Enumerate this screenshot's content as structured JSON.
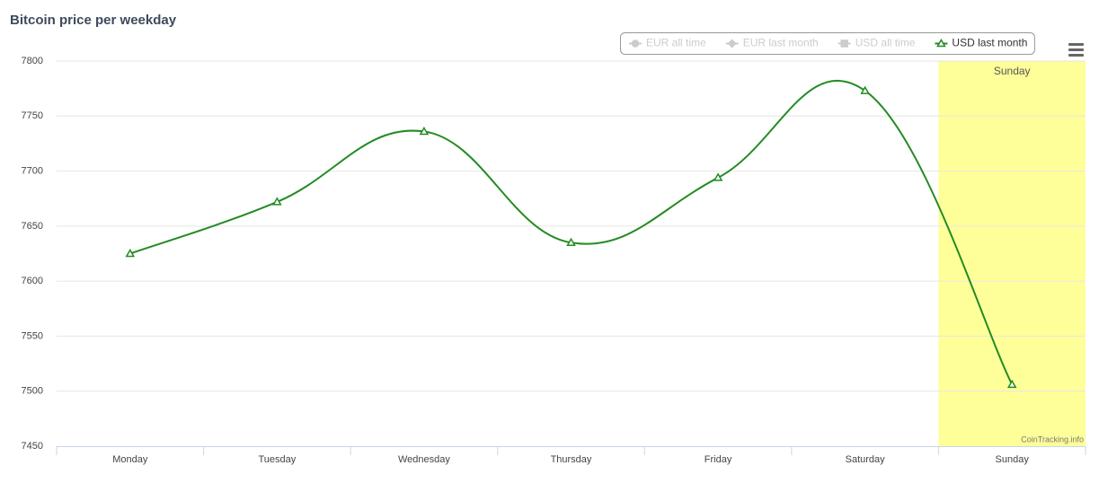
{
  "chart_data": {
    "type": "line",
    "title": "Bitcoin price per weekday",
    "categories": [
      "Monday",
      "Tuesday",
      "Wednesday",
      "Thursday",
      "Friday",
      "Saturday",
      "Sunday"
    ],
    "series": [
      {
        "name": "EUR all time",
        "color": "#cccccc",
        "marker": "circle",
        "visible": false,
        "values": [
          null,
          null,
          null,
          null,
          null,
          null,
          null
        ]
      },
      {
        "name": "EUR last month",
        "color": "#2f6fa8",
        "marker": "diamond",
        "visible": false,
        "values": [
          null,
          null,
          null,
          null,
          null,
          null,
          null
        ]
      },
      {
        "name": "USD all time",
        "color": "#cccccc",
        "marker": "square",
        "visible": false,
        "values": [
          null,
          null,
          null,
          null,
          null,
          null,
          null
        ]
      },
      {
        "name": "USD last month",
        "color": "#238b23",
        "marker": "triangle",
        "visible": true,
        "values": [
          7625,
          7672,
          7736,
          7635,
          7694,
          7773,
          7506
        ]
      }
    ],
    "ylim": [
      7450,
      7800
    ],
    "yticks": [
      7450,
      7500,
      7550,
      7600,
      7650,
      7700,
      7750,
      7800
    ],
    "grid": true,
    "plot_band": {
      "category": "Sunday",
      "label": "Sunday",
      "color": "#ffff99"
    },
    "credit": "CoinTracking.info"
  }
}
